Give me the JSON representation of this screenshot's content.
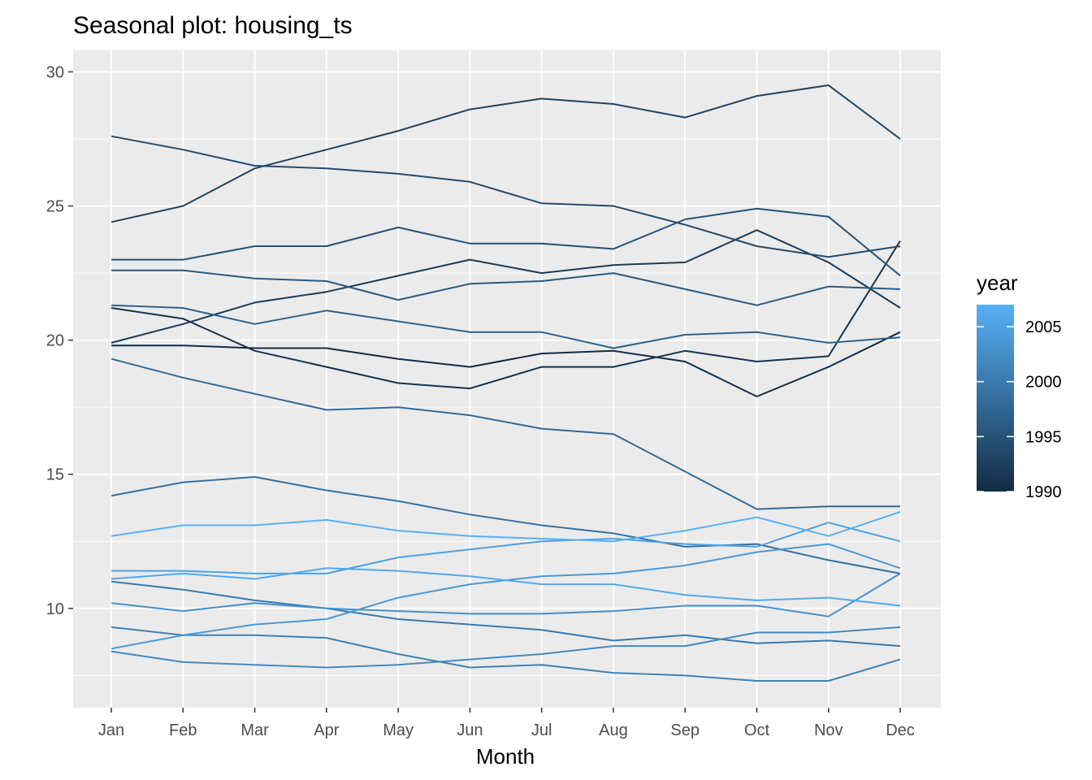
{
  "chart_data": {
    "type": "line",
    "title": "Seasonal plot: housing_ts",
    "xlabel": "Month",
    "ylabel": "",
    "categories": [
      "Jan",
      "Feb",
      "Mar",
      "Apr",
      "May",
      "Jun",
      "Jul",
      "Aug",
      "Sep",
      "Oct",
      "Nov",
      "Dec"
    ],
    "ylim": [
      6.3,
      30.8
    ],
    "y_ticks": [
      10,
      15,
      20,
      25,
      30
    ],
    "grid": true,
    "legend": {
      "title": "year",
      "position": "right",
      "type": "colorbar",
      "range": [
        1990,
        2007
      ],
      "ticks": [
        1990,
        1995,
        2000,
        2005
      ],
      "colors": {
        "low": "#132b43",
        "high": "#56b1f7"
      }
    },
    "series": [
      {
        "year": 1990,
        "values": [
          19.8,
          19.8,
          19.7,
          19.7,
          19.3,
          19.0,
          19.5,
          19.6,
          19.2,
          17.9,
          19.0,
          20.3
        ]
      },
      {
        "year": 1991,
        "values": [
          21.2,
          20.8,
          19.6,
          19.0,
          18.4,
          18.2,
          19.0,
          19.0,
          19.6,
          19.2,
          19.4,
          23.7
        ]
      },
      {
        "year": 1992,
        "values": [
          19.9,
          20.6,
          21.4,
          21.8,
          22.4,
          23.0,
          22.5,
          22.8,
          22.9,
          24.1,
          22.9,
          21.2
        ]
      },
      {
        "year": 1993,
        "values": [
          24.4,
          25.0,
          26.4,
          27.1,
          27.8,
          28.6,
          29.0,
          28.8,
          28.3,
          29.1,
          29.5,
          27.5
        ]
      },
      {
        "year": 1994,
        "values": [
          27.6,
          27.1,
          26.5,
          26.4,
          26.2,
          25.9,
          25.1,
          25.0,
          24.3,
          23.5,
          23.1,
          23.5
        ]
      },
      {
        "year": 1995,
        "values": [
          23.0,
          23.0,
          23.5,
          23.5,
          24.2,
          23.6,
          23.6,
          23.4,
          24.5,
          24.9,
          24.6,
          22.4
        ]
      },
      {
        "year": 1996,
        "values": [
          22.6,
          22.6,
          22.3,
          22.2,
          21.5,
          22.1,
          22.2,
          22.5,
          21.9,
          21.3,
          22.0,
          21.9
        ]
      },
      {
        "year": 1997,
        "values": [
          21.3,
          21.2,
          20.6,
          21.1,
          20.7,
          20.3,
          20.3,
          19.7,
          20.2,
          20.3,
          19.9,
          20.1
        ]
      },
      {
        "year": 1998,
        "values": [
          19.3,
          18.6,
          18.0,
          17.4,
          17.5,
          17.2,
          16.7,
          16.5,
          15.1,
          13.7,
          13.8,
          13.8
        ]
      },
      {
        "year": 1999,
        "values": [
          14.2,
          14.7,
          14.9,
          14.4,
          14.0,
          13.5,
          13.1,
          12.8,
          12.3,
          12.4,
          11.8,
          11.3
        ]
      },
      {
        "year": 2000,
        "values": [
          11.0,
          10.7,
          10.3,
          10.0,
          9.6,
          9.4,
          9.2,
          8.8,
          9.0,
          8.7,
          8.8,
          8.6
        ]
      },
      {
        "year": 2001,
        "values": [
          9.3,
          9.0,
          9.0,
          8.9,
          8.3,
          7.8,
          7.9,
          7.6,
          7.5,
          7.3,
          7.3,
          8.1
        ]
      },
      {
        "year": 2002,
        "values": [
          8.4,
          8.0,
          7.9,
          7.8,
          7.9,
          8.1,
          8.3,
          8.6,
          8.6,
          9.1,
          9.1,
          9.3
        ]
      },
      {
        "year": 2003,
        "values": [
          10.2,
          9.9,
          10.2,
          10.0,
          9.9,
          9.8,
          9.8,
          9.9,
          10.1,
          10.1,
          9.7,
          11.3
        ]
      },
      {
        "year": 2004,
        "values": [
          8.5,
          9.0,
          9.4,
          9.6,
          10.4,
          10.9,
          11.2,
          11.3,
          11.6,
          12.1,
          12.4,
          11.5
        ]
      },
      {
        "year": 2005,
        "values": [
          11.4,
          11.4,
          11.3,
          11.3,
          11.9,
          12.2,
          12.5,
          12.6,
          12.4,
          12.3,
          13.2,
          12.5
        ]
      },
      {
        "year": 2006,
        "values": [
          11.1,
          11.3,
          11.1,
          11.5,
          11.4,
          11.2,
          10.9,
          10.9,
          10.5,
          10.3,
          10.4,
          10.1
        ]
      },
      {
        "year": 2007,
        "values": [
          12.7,
          13.1,
          13.1,
          13.3,
          12.9,
          12.7,
          12.6,
          12.5,
          12.9,
          13.4,
          12.7,
          13.6
        ]
      }
    ]
  }
}
